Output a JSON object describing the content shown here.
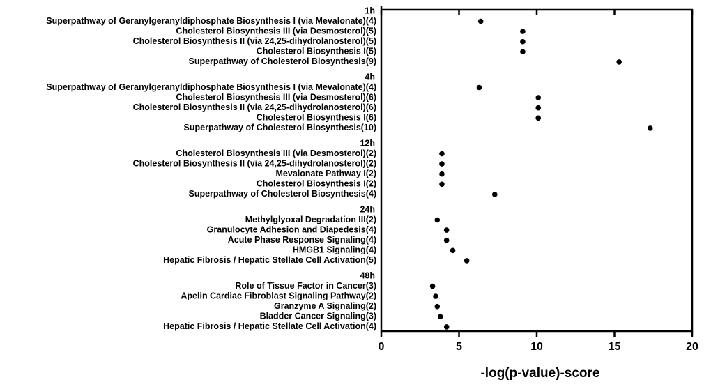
{
  "chart_data": {
    "type": "dot",
    "x_label": "-log(p-value)-score",
    "xlim": [
      0,
      20
    ],
    "xticks": [
      0,
      5,
      10,
      15,
      20
    ],
    "color": "#000000",
    "groups": [
      {
        "name": "1h",
        "categories": [
          "Superpathway of Geranylgeranyldiphosphate Biosynthesis I (via Mevalonate)(4)",
          "Cholesterol Biosynthesis III (via Desmosterol)(5)",
          "Cholesterol Biosynthesis II (via 24,25-dihydrolanosterol)(5)",
          "Cholesterol Biosynthesis I(5)",
          "Superpathway of Cholesterol Biosynthesis(9)"
        ],
        "values": [
          6.4,
          9.1,
          9.1,
          9.1,
          15.3
        ]
      },
      {
        "name": "4h",
        "categories": [
          "Superpathway of Geranylgeranyldiphosphate Biosynthesis I (via Mevalonate)(4)",
          "Cholesterol Biosynthesis III (via Desmosterol)(6)",
          "Cholesterol Biosynthesis II (via 24,25-dihydrolanosterol)(6)",
          "Cholesterol Biosynthesis I(6)",
          "Superpathway of Cholesterol Biosynthesis(10)"
        ],
        "values": [
          6.3,
          10.1,
          10.1,
          10.1,
          17.3
        ]
      },
      {
        "name": "12h",
        "categories": [
          "Cholesterol Biosynthesis III (via Desmosterol)(2)",
          "Cholesterol Biosynthesis II (via 24,25-dihydrolanosterol)(2)",
          "Mevalonate Pathway I(2)",
          "Cholesterol Biosynthesis I(2)",
          "Superpathway of Cholesterol Biosynthesis(4)"
        ],
        "values": [
          3.9,
          3.9,
          3.9,
          3.9,
          7.3
        ]
      },
      {
        "name": "24h",
        "categories": [
          "Methylglyoxal Degradation III(2)",
          "Granulocyte Adhesion and Diapedesis(4)",
          "Acute Phase Response Signaling(4)",
          "HMGB1 Signaling(4)",
          "Hepatic Fibrosis / Hepatic Stellate Cell Activation(5)"
        ],
        "values": [
          3.6,
          4.2,
          4.2,
          4.6,
          5.5
        ]
      },
      {
        "name": "48h",
        "categories": [
          "Role of Tissue Factor in Cancer(3)",
          "Apelin Cardiac Fibroblast Signaling Pathway(2)",
          "Granzyme A Signaling(2)",
          "Bladder Cancer Signaling(3)",
          "Hepatic Fibrosis / Hepatic Stellate Cell Activation(4)"
        ],
        "values": [
          3.3,
          3.5,
          3.6,
          3.8,
          4.2
        ]
      }
    ]
  }
}
